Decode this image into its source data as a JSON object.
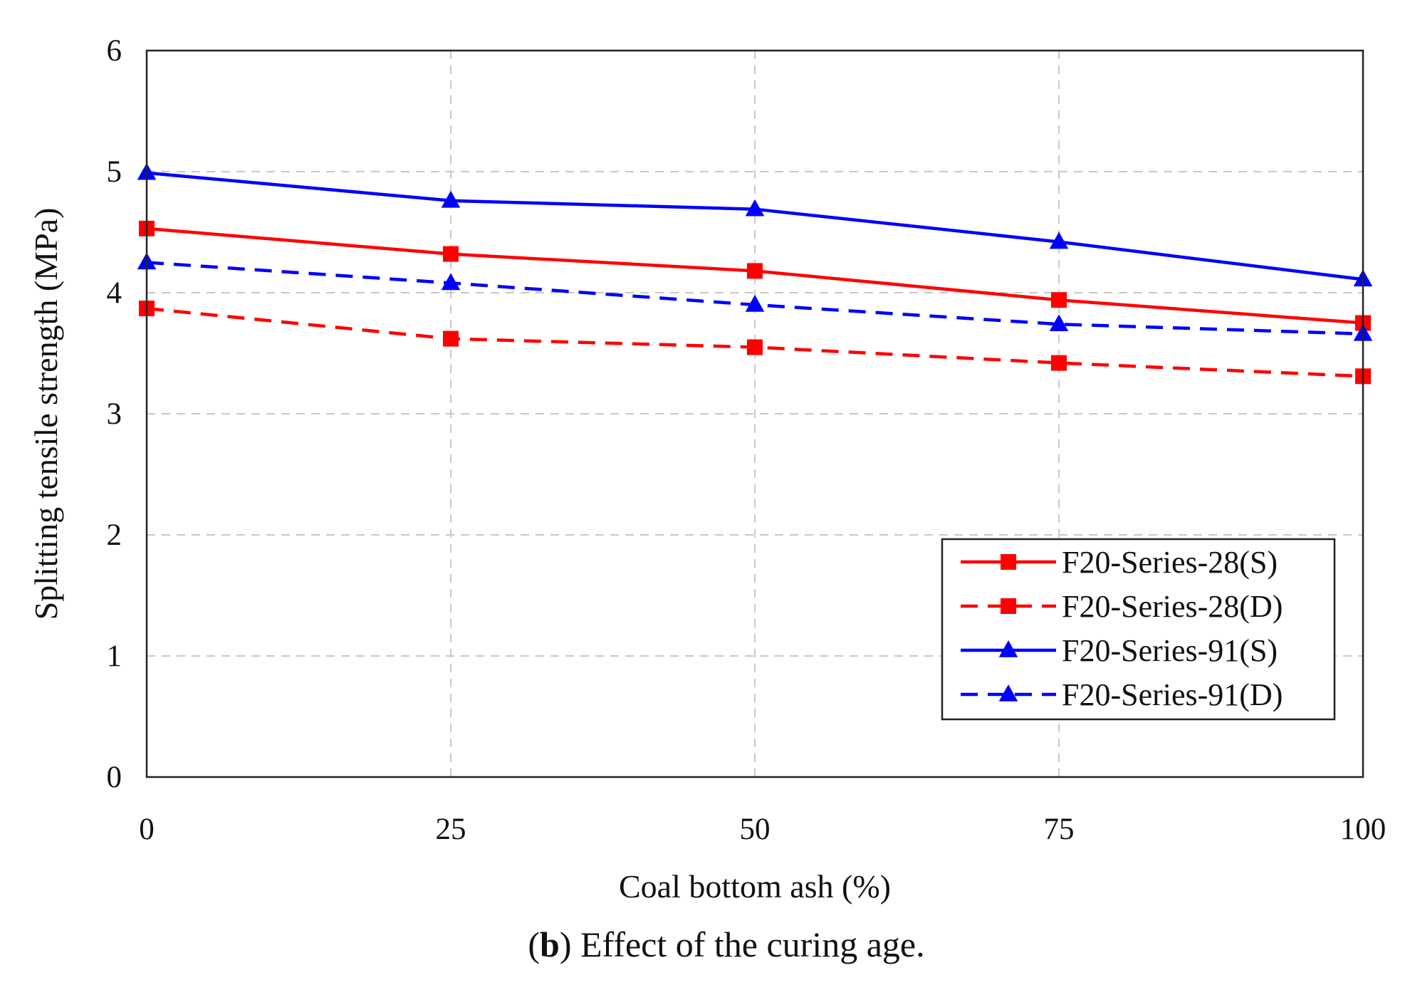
{
  "chart_data": {
    "type": "line",
    "title": "",
    "xlabel": "Coal bottom ash (%)",
    "ylabel": "Splitting tensile strength (MPa)",
    "x": [
      0,
      25,
      50,
      75,
      100
    ],
    "x_tick_labels": [
      "0",
      "25",
      "50",
      "75",
      "100"
    ],
    "y_tick_labels": [
      "0",
      "1",
      "2",
      "3",
      "4",
      "5",
      "6"
    ],
    "xlim": [
      0,
      100
    ],
    "ylim": [
      0,
      6
    ],
    "grid": true,
    "legend_position": "bottom-right",
    "series": [
      {
        "name": "F20-Series-28(S)",
        "color": "#ff0000",
        "line_style": "solid",
        "marker": "square",
        "values": [
          4.53,
          4.32,
          4.18,
          3.94,
          3.75
        ]
      },
      {
        "name": "F20-Series-28(D)",
        "color": "#ff0000",
        "line_style": "dashed",
        "marker": "square",
        "values": [
          3.87,
          3.62,
          3.55,
          3.42,
          3.31
        ]
      },
      {
        "name": "F20-Series-91(S)",
        "color": "#0000ff",
        "line_style": "solid",
        "marker": "triangle",
        "values": [
          4.99,
          4.76,
          4.69,
          4.42,
          4.11
        ]
      },
      {
        "name": "F20-Series-91(D)",
        "color": "#0000ff",
        "line_style": "dashed",
        "marker": "triangle",
        "values": [
          4.25,
          4.08,
          3.9,
          3.74,
          3.66
        ]
      }
    ]
  },
  "caption": {
    "open_paren": "(",
    "letter": "b",
    "text": ") Effect of the curing age."
  }
}
